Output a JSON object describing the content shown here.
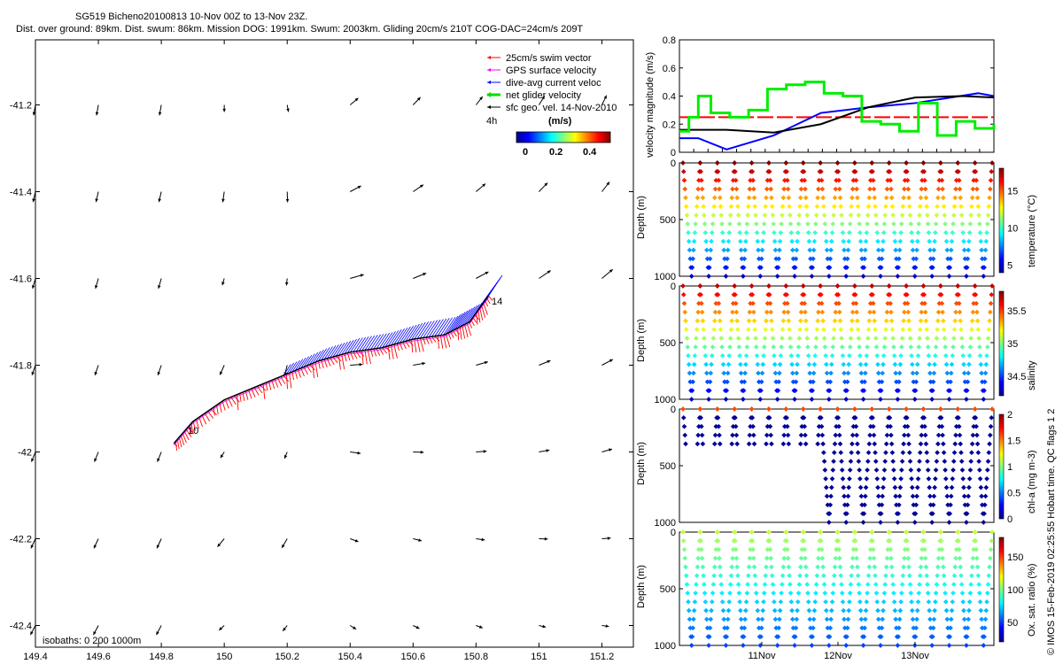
{
  "header": {
    "line1": "SG519 Bicheno20100813 10-Nov 00Z to 13-Nov 23Z.",
    "line2": "Dist. over ground: 89km. Dist. swum: 86km. Mission DOG: 1991km. Swum: 2003km. Gliding 20cm/s 210T COG-DAC=24cm/s 209T"
  },
  "legend": {
    "items": [
      {
        "label": "25cm/s swim vector",
        "color": "#ff0000"
      },
      {
        "label": "GPS surface velocity",
        "color": "#ff00ff"
      },
      {
        "label": "dive-avg current veloc",
        "color": "#0000ff"
      },
      {
        "label": "net glider velocity",
        "color": "#00dd00"
      },
      {
        "label": "sfc geo. vel. 14-Nov-2010",
        "color": "#000000"
      }
    ],
    "time_label": "4h",
    "colorbar_title": "(m/s)",
    "colorbar_ticks": [
      "0",
      "0.2",
      "0.4"
    ]
  },
  "isobaths_label": "isobaths: 0   200   1000m",
  "track_labels": {
    "start": "10",
    "end": "14"
  },
  "credit": "© IMOS 15-Feb-2019 02:25:55 Hobart time. QC flags 1  2",
  "chart_data": [
    {
      "type": "scatter",
      "name": "map",
      "xlim": [
        149.4,
        151.3
      ],
      "ylim": [
        -42.45,
        -41.05
      ],
      "xticks": [
        "149.4",
        "149.6",
        "149.8",
        "150",
        "150.2",
        "150.4",
        "150.6",
        "150.8",
        "151",
        "151.2"
      ],
      "yticks": [
        "-41.2",
        "-41.4",
        "-41.6",
        "-41.8",
        "-42",
        "-42.2",
        "-42.4"
      ],
      "grid": false,
      "track": [
        [
          149.84,
          -41.98
        ],
        [
          149.9,
          -41.93
        ],
        [
          150,
          -41.88
        ],
        [
          150.1,
          -41.85
        ],
        [
          150.2,
          -41.82
        ],
        [
          150.3,
          -41.79
        ],
        [
          150.4,
          -41.77
        ],
        [
          150.5,
          -41.76
        ],
        [
          150.6,
          -41.74
        ],
        [
          150.7,
          -41.73
        ],
        [
          150.78,
          -41.7
        ],
        [
          150.84,
          -41.64
        ]
      ]
    },
    {
      "type": "line",
      "name": "velocity",
      "ylabel": "velocity magnitude (m/s)",
      "ylim": [
        0,
        0.8
      ],
      "yticks": [
        "0",
        "0.2",
        "0.4",
        "0.6",
        "0.8"
      ],
      "series": [
        {
          "color": "#ff0000",
          "x": [
            0,
            1
          ],
          "y": [
            0.25,
            0.25
          ]
        },
        {
          "color": "#0000ff",
          "x": [
            0,
            0.06,
            0.15,
            0.3,
            0.45,
            0.6,
            0.75,
            0.95,
            1
          ],
          "y": [
            0.1,
            0.1,
            0.02,
            0.12,
            0.28,
            0.32,
            0.35,
            0.42,
            0.4
          ]
        },
        {
          "color": "#000000",
          "x": [
            0,
            0.15,
            0.3,
            0.45,
            0.6,
            0.75,
            0.9,
            1
          ],
          "y": [
            0.16,
            0.16,
            0.14,
            0.2,
            0.32,
            0.39,
            0.4,
            0.39
          ]
        },
        {
          "color": "#00ee00",
          "x": [
            0,
            0.03,
            0.06,
            0.1,
            0.16,
            0.22,
            0.28,
            0.34,
            0.4,
            0.46,
            0.52,
            0.58,
            0.64,
            0.7,
            0.76,
            0.82,
            0.88,
            0.94,
            1
          ],
          "y": [
            0.15,
            0.25,
            0.4,
            0.28,
            0.25,
            0.3,
            0.45,
            0.48,
            0.5,
            0.42,
            0.4,
            0.22,
            0.2,
            0.15,
            0.35,
            0.12,
            0.22,
            0.17,
            0.2
          ]
        }
      ]
    },
    {
      "type": "scatter",
      "name": "temperature",
      "ylabel": "Depth (m)",
      "cbar_label": "temperature (°C)",
      "ylim": [
        1000,
        0
      ],
      "yticks": [
        "0",
        "500",
        "1000"
      ],
      "cticks": [
        "5",
        "10",
        "15"
      ],
      "colormap": "jet",
      "dives": 18
    },
    {
      "type": "scatter",
      "name": "salinity",
      "ylabel": "Depth (m)",
      "cbar_label": "salinity",
      "ylim": [
        1000,
        0
      ],
      "yticks": [
        "0",
        "500",
        "1000"
      ],
      "cticks": [
        "34.5",
        "35",
        "35.5"
      ],
      "colormap": "jet",
      "dives": 18
    },
    {
      "type": "scatter",
      "name": "chla",
      "ylabel": "Depth (m)",
      "cbar_label": "chl-a (mg m-3)",
      "ylim": [
        1000,
        0
      ],
      "yticks": [
        "0",
        "500",
        "1000"
      ],
      "cticks": [
        "0",
        "0.5",
        "1",
        "1.5",
        "2"
      ],
      "colormap": "jet",
      "dives": 18
    },
    {
      "type": "scatter",
      "name": "oxygen",
      "ylabel": "Depth (m)",
      "cbar_label": "Ox. sat. ratio (%)",
      "ylim": [
        1000,
        0
      ],
      "yticks": [
        "0",
        "500",
        "1000"
      ],
      "cticks": [
        "50",
        "100",
        "150"
      ],
      "colormap": "jet",
      "dives": 18,
      "xticks": [
        "11Nov",
        "12Nov",
        "13Nov"
      ]
    }
  ]
}
